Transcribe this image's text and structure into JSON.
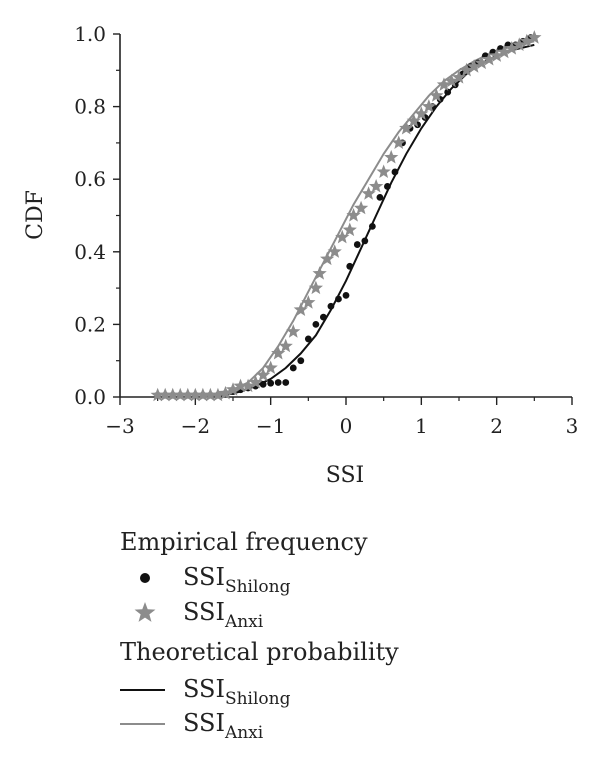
{
  "chart_data": {
    "type": "scatter",
    "xlabel": "SSI",
    "ylabel": "CDF",
    "xlim": [
      -3,
      3
    ],
    "ylim": [
      0,
      1
    ],
    "x_ticks": [
      "−3",
      "−2",
      "−1",
      "0",
      "1",
      "2",
      "3"
    ],
    "y_ticks": [
      "0.0",
      "0.2",
      "0.4",
      "0.6",
      "0.8",
      "1.0"
    ],
    "grid": false,
    "legend_position": "bottom",
    "colors": {
      "shilong": "#111111",
      "anxi": "#8c8c8c"
    },
    "legend": {
      "group_empirical": "Empirical frequency",
      "group_theoretical": "Theoretical probability",
      "entries": [
        {
          "base": "SSI",
          "sub": "Shilong",
          "marker": "dot"
        },
        {
          "base": "SSI",
          "sub": "Anxi",
          "marker": "star"
        },
        {
          "base": "SSI",
          "sub": "Shilong",
          "marker": "line-dark"
        },
        {
          "base": "SSI",
          "sub": "Anxi",
          "marker": "line-gray"
        }
      ]
    },
    "series": [
      {
        "kind": "empirical",
        "marker": "dot",
        "color": "#111111",
        "points": [
          [
            -2.5,
            0.005
          ],
          [
            -2.4,
            0.005
          ],
          [
            -2.3,
            0.005
          ],
          [
            -2.2,
            0.005
          ],
          [
            -2.1,
            0.005
          ],
          [
            -2.0,
            0.005
          ],
          [
            -1.9,
            0.005
          ],
          [
            -1.8,
            0.005
          ],
          [
            -1.7,
            0.005
          ],
          [
            -1.6,
            0.01
          ],
          [
            -1.5,
            0.015
          ],
          [
            -1.4,
            0.02
          ],
          [
            -1.3,
            0.025
          ],
          [
            -1.2,
            0.03
          ],
          [
            -1.1,
            0.035
          ],
          [
            -1.0,
            0.038
          ],
          [
            -0.9,
            0.04
          ],
          [
            -0.8,
            0.04
          ],
          [
            -0.7,
            0.08
          ],
          [
            -0.6,
            0.1
          ],
          [
            -0.5,
            0.16
          ],
          [
            -0.4,
            0.2
          ],
          [
            -0.3,
            0.22
          ],
          [
            -0.2,
            0.25
          ],
          [
            -0.1,
            0.27
          ],
          [
            0.0,
            0.28
          ],
          [
            0.05,
            0.36
          ],
          [
            0.15,
            0.42
          ],
          [
            0.25,
            0.43
          ],
          [
            0.35,
            0.47
          ],
          [
            0.45,
            0.55
          ],
          [
            0.55,
            0.58
          ],
          [
            0.65,
            0.62
          ],
          [
            0.75,
            0.7
          ],
          [
            0.85,
            0.74
          ],
          [
            0.95,
            0.75
          ],
          [
            1.05,
            0.77
          ],
          [
            1.15,
            0.8
          ],
          [
            1.25,
            0.82
          ],
          [
            1.35,
            0.84
          ],
          [
            1.45,
            0.86
          ],
          [
            1.55,
            0.89
          ],
          [
            1.65,
            0.91
          ],
          [
            1.75,
            0.92
          ],
          [
            1.85,
            0.94
          ],
          [
            1.95,
            0.95
          ],
          [
            2.05,
            0.96
          ],
          [
            2.15,
            0.97
          ],
          [
            2.25,
            0.97
          ],
          [
            2.35,
            0.98
          ],
          [
            2.45,
            0.99
          ]
        ]
      },
      {
        "kind": "empirical",
        "marker": "star",
        "color": "#8c8c8c",
        "points": [
          [
            -2.5,
            0.005
          ],
          [
            -2.4,
            0.005
          ],
          [
            -2.3,
            0.005
          ],
          [
            -2.2,
            0.005
          ],
          [
            -2.1,
            0.005
          ],
          [
            -2.0,
            0.005
          ],
          [
            -1.9,
            0.005
          ],
          [
            -1.8,
            0.005
          ],
          [
            -1.7,
            0.005
          ],
          [
            -1.6,
            0.01
          ],
          [
            -1.5,
            0.02
          ],
          [
            -1.4,
            0.03
          ],
          [
            -1.3,
            0.03
          ],
          [
            -1.2,
            0.04
          ],
          [
            -1.1,
            0.06
          ],
          [
            -1.0,
            0.08
          ],
          [
            -0.9,
            0.12
          ],
          [
            -0.8,
            0.14
          ],
          [
            -0.7,
            0.18
          ],
          [
            -0.6,
            0.24
          ],
          [
            -0.5,
            0.26
          ],
          [
            -0.4,
            0.3
          ],
          [
            -0.35,
            0.34
          ],
          [
            -0.25,
            0.38
          ],
          [
            -0.15,
            0.4
          ],
          [
            -0.05,
            0.44
          ],
          [
            0.05,
            0.46
          ],
          [
            0.1,
            0.5
          ],
          [
            0.2,
            0.52
          ],
          [
            0.3,
            0.56
          ],
          [
            0.4,
            0.58
          ],
          [
            0.5,
            0.62
          ],
          [
            0.6,
            0.66
          ],
          [
            0.7,
            0.7
          ],
          [
            0.8,
            0.74
          ],
          [
            0.9,
            0.76
          ],
          [
            1.0,
            0.78
          ],
          [
            1.1,
            0.8
          ],
          [
            1.2,
            0.83
          ],
          [
            1.3,
            0.86
          ],
          [
            1.4,
            0.87
          ],
          [
            1.5,
            0.88
          ],
          [
            1.6,
            0.9
          ],
          [
            1.7,
            0.91
          ],
          [
            1.8,
            0.92
          ],
          [
            1.9,
            0.93
          ],
          [
            2.0,
            0.94
          ],
          [
            2.1,
            0.95
          ],
          [
            2.2,
            0.96
          ],
          [
            2.3,
            0.97
          ],
          [
            2.4,
            0.98
          ],
          [
            2.5,
            0.99
          ]
        ]
      },
      {
        "kind": "theoretical",
        "marker": "line",
        "color": "#111111",
        "points": [
          [
            -1.8,
            0.0
          ],
          [
            -1.6,
            0.005
          ],
          [
            -1.4,
            0.015
          ],
          [
            -1.2,
            0.03
          ],
          [
            -1.0,
            0.05
          ],
          [
            -0.8,
            0.08
          ],
          [
            -0.6,
            0.12
          ],
          [
            -0.4,
            0.17
          ],
          [
            -0.2,
            0.24
          ],
          [
            0.0,
            0.32
          ],
          [
            0.2,
            0.41
          ],
          [
            0.4,
            0.5
          ],
          [
            0.6,
            0.59
          ],
          [
            0.8,
            0.67
          ],
          [
            1.0,
            0.74
          ],
          [
            1.2,
            0.8
          ],
          [
            1.4,
            0.85
          ],
          [
            1.6,
            0.89
          ],
          [
            1.8,
            0.92
          ],
          [
            2.0,
            0.94
          ],
          [
            2.2,
            0.955
          ],
          [
            2.4,
            0.965
          ],
          [
            2.5,
            0.97
          ]
        ]
      },
      {
        "kind": "theoretical",
        "marker": "line",
        "color": "#8c8c8c",
        "points": [
          [
            -1.9,
            0.0
          ],
          [
            -1.7,
            0.005
          ],
          [
            -1.5,
            0.02
          ],
          [
            -1.3,
            0.04
          ],
          [
            -1.1,
            0.08
          ],
          [
            -0.9,
            0.14
          ],
          [
            -0.7,
            0.21
          ],
          [
            -0.5,
            0.29
          ],
          [
            -0.3,
            0.37
          ],
          [
            -0.1,
            0.45
          ],
          [
            0.1,
            0.53
          ],
          [
            0.3,
            0.6
          ],
          [
            0.5,
            0.67
          ],
          [
            0.7,
            0.73
          ],
          [
            0.9,
            0.78
          ],
          [
            1.1,
            0.83
          ],
          [
            1.3,
            0.87
          ],
          [
            1.5,
            0.9
          ],
          [
            1.7,
            0.925
          ],
          [
            1.9,
            0.945
          ],
          [
            2.1,
            0.96
          ],
          [
            2.3,
            0.97
          ],
          [
            2.5,
            0.98
          ]
        ]
      }
    ]
  }
}
